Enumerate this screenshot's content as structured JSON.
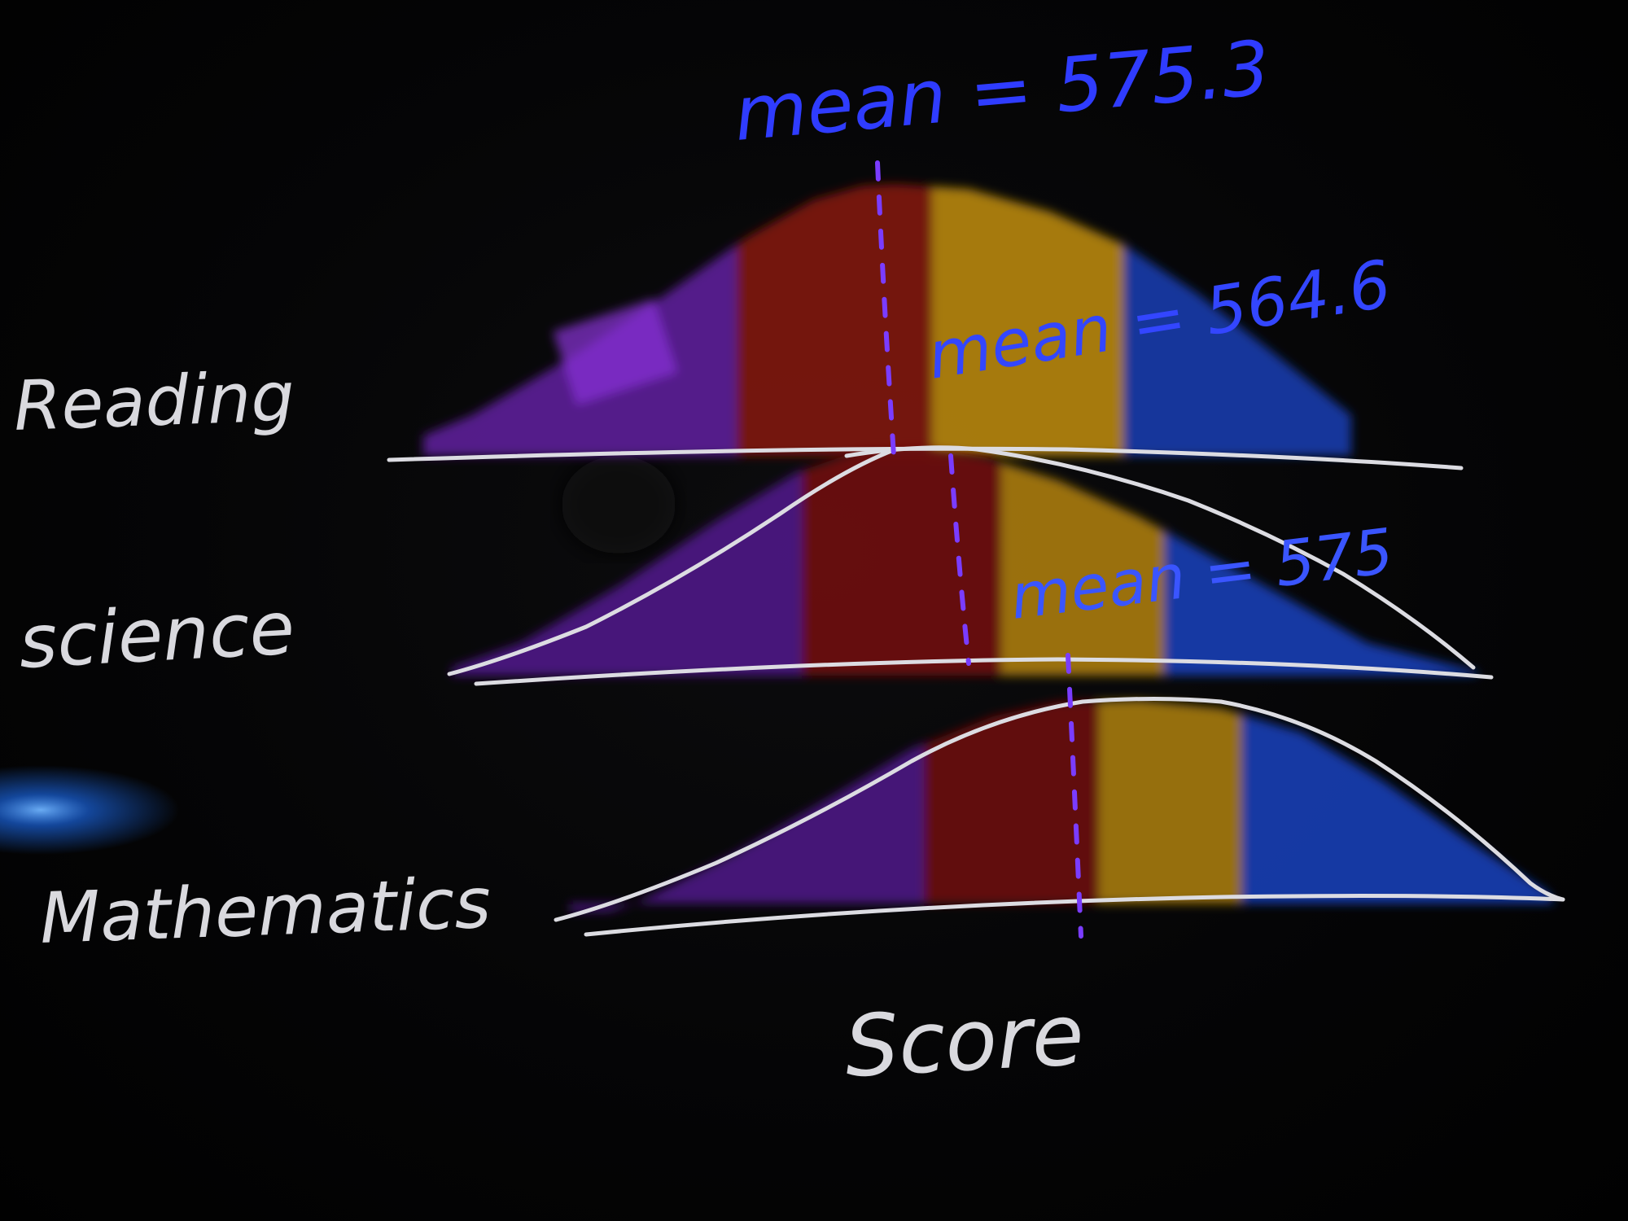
{
  "colors": {
    "background": "#030303",
    "chalk": "#dcdce2",
    "annotation_blue": "#2f3cff",
    "band_purple": "#6a1fa8",
    "band_red": "#8a140e",
    "band_yellow": "#b98a10",
    "band_blue": "#1c3fb8",
    "mean_marker": "#7a3cff",
    "glare": "#1e73ff"
  },
  "subjects": [
    {
      "name": "Reading",
      "mean_label": "mean = 575.3"
    },
    {
      "name": "science",
      "mean_label": "mean = 564.6"
    },
    {
      "name": "Mathematics",
      "mean_label": "mean = 575"
    }
  ],
  "x_axis_label": "Score"
}
